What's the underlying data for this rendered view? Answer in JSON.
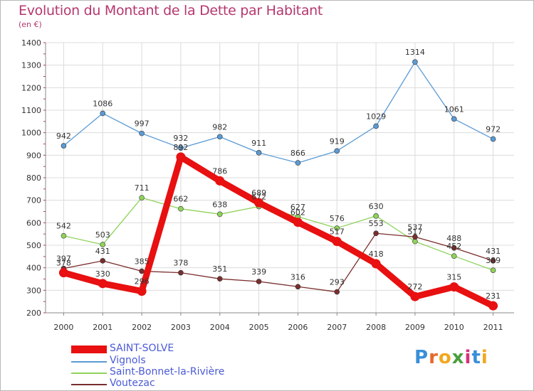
{
  "header": {
    "title": "Evolution du Montant de la Dette par Habitant",
    "subtitle": "(en €)"
  },
  "logo": {
    "letters": [
      "P",
      "r",
      "o",
      "x",
      "i",
      "t",
      "i"
    ],
    "colors": [
      "#3a8fd8",
      "#e8672a",
      "#f2a81e",
      "#4a9f3c",
      "#d8317a",
      "#3a8fd8",
      "#f2a81e"
    ]
  },
  "chart_data": {
    "type": "line",
    "x": [
      "2000",
      "2001",
      "2002",
      "2003",
      "2004",
      "2005",
      "2006",
      "2007",
      "2008",
      "2009",
      "2010",
      "2011"
    ],
    "ylim": [
      200,
      1400
    ],
    "yticks": [
      "200",
      "300",
      "400",
      "500",
      "600",
      "700",
      "800",
      "900",
      "1000",
      "1100",
      "1200",
      "1300",
      "1400"
    ],
    "grid": true,
    "legend_position": "bottom-left",
    "series": [
      {
        "name": "Vignols",
        "color": "#5b9bd5",
        "values": [
          942,
          1086,
          997,
          932,
          982,
          911,
          866,
          919,
          1029,
          1314,
          1061,
          972
        ],
        "labels": [
          "942",
          "1086",
          "997",
          "932",
          "982",
          "911",
          "866",
          "919",
          "1029",
          "1314",
          "1061",
          "972"
        ]
      },
      {
        "name": "Saint-Bonnet-la-Rivière",
        "color": "#8fd35a",
        "values": [
          542,
          503,
          711,
          662,
          638,
          672,
          627,
          576,
          630,
          517,
          452,
          389
        ],
        "labels": [
          "542",
          "503",
          "711",
          "662",
          "638",
          "672",
          "627",
          "576",
          "630",
          "517",
          "452",
          "389"
        ]
      },
      {
        "name": "Voutezac",
        "color": "#7a2e2e",
        "values": [
          397,
          431,
          385,
          378,
          351,
          339,
          316,
          293,
          553,
          537,
          488,
          431
        ],
        "labels": [
          "397",
          "431",
          "385",
          "378",
          "351",
          "339",
          "316",
          "293",
          "553",
          "537",
          "488",
          "431"
        ]
      },
      {
        "name": "SAINT-SOLVE",
        "color": "#e81010",
        "values": [
          378,
          330,
          296,
          892,
          786,
          689,
          602,
          517,
          418,
          272,
          315,
          231
        ],
        "labels": [
          "378",
          "330",
          "296",
          "892",
          "786",
          "689",
          "602",
          "517",
          "418",
          "272",
          "315",
          "231"
        ]
      }
    ],
    "legend": [
      "SAINT-SOLVE",
      "Vignols",
      "Saint-Bonnet-la-Rivière",
      "Voutezac"
    ]
  }
}
